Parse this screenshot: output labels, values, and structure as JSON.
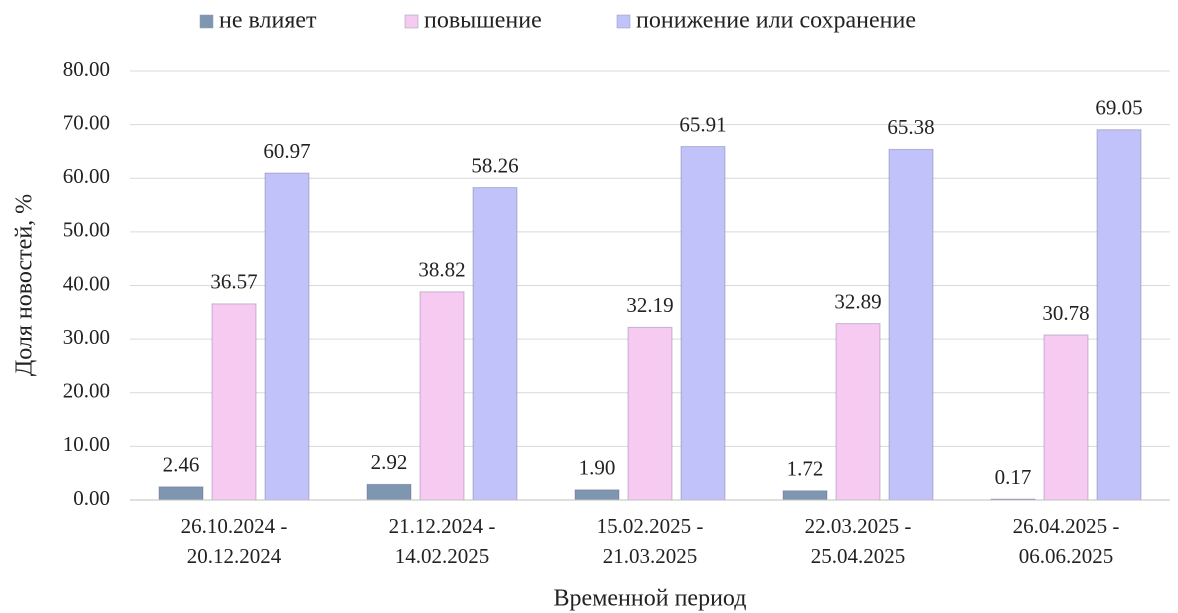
{
  "chart_data": {
    "type": "bar",
    "x_label": "Временной период",
    "y_label": "Доля новостей, %",
    "categories": [
      "26.10.2024 - 20.12.2024",
      "21.12.2024 - 14.02.2025",
      "15.02.2025 - 21.03.2025",
      "22.03.2025 - 25.04.2025",
      "26.04.2025 - 06.06.2025"
    ],
    "series": [
      {
        "name": "не влияет",
        "color": "#7f96b0",
        "values": [
          2.46,
          2.92,
          1.9,
          1.72,
          0.17
        ],
        "value_labels": [
          "2.46",
          "2.92",
          "1.90",
          "1.72",
          "0.17"
        ]
      },
      {
        "name": "повышение",
        "color": "#f7cbf1",
        "values": [
          36.57,
          38.82,
          32.19,
          32.89,
          30.78
        ],
        "value_labels": [
          "36.57",
          "38.82",
          "32.19",
          "32.89",
          "30.78"
        ]
      },
      {
        "name": "понижение или сохранение",
        "color": "#c2c2fa",
        "values": [
          60.97,
          58.26,
          65.91,
          65.38,
          69.05
        ],
        "value_labels": [
          "60.97",
          "58.26",
          "65.91",
          "65.38",
          "69.05"
        ]
      }
    ],
    "ylim": [
      0,
      80
    ],
    "yticks": [
      {
        "value": 0,
        "label": "0.00"
      },
      {
        "value": 10,
        "label": "10.00"
      },
      {
        "value": 20,
        "label": "20.00"
      },
      {
        "value": 30,
        "label": "30.00"
      },
      {
        "value": 40,
        "label": "40.00"
      },
      {
        "value": 50,
        "label": "50.00"
      },
      {
        "value": 60,
        "label": "60.00"
      },
      {
        "value": 70,
        "label": "70.00"
      },
      {
        "value": 80,
        "label": "80.00"
      }
    ],
    "grid": true,
    "legend": "top"
  }
}
